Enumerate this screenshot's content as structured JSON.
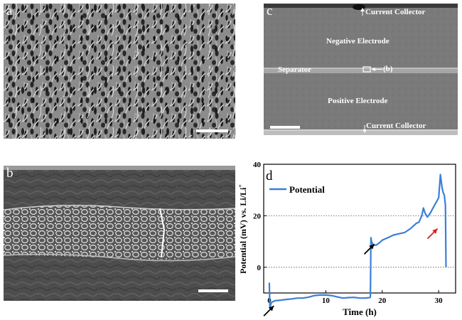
{
  "panels": {
    "a": {
      "label": "a"
    },
    "b": {
      "label": "b"
    },
    "c": {
      "label": "c",
      "top_collector": "Current Collector",
      "negative": "Negative Electrode",
      "separator": "Separator",
      "marker": "(b)",
      "positive": "Positive Electrode",
      "bottom_collector": "Current Collector"
    },
    "d": {
      "label": "d"
    }
  },
  "chart_data": {
    "type": "line",
    "xlabel": "Time (h)",
    "ylabel": "Potential (mV) vs. Li/Li",
    "ylabel_sup": "+",
    "xlim": [
      -1,
      33
    ],
    "ylim": [
      -10,
      40
    ],
    "xticks": [
      0,
      10,
      20,
      30
    ],
    "yticks": [
      0,
      20,
      40
    ],
    "hlines": [
      0,
      20
    ],
    "legend": "top-left",
    "series": [
      {
        "name": "Potential",
        "color": "#3b7fd6",
        "x": [
          0,
          0.1,
          0.2,
          0.3,
          0.5,
          1,
          2,
          3,
          4,
          5,
          6,
          7,
          8,
          9,
          10,
          11,
          12,
          13,
          14,
          15,
          16,
          17,
          17.8,
          17.9,
          18.0,
          18.1,
          18.3,
          18.6,
          19,
          19.5,
          20,
          21,
          22,
          23,
          24,
          25,
          25.5,
          26,
          26.5,
          27,
          27.3,
          27.6,
          28,
          28.5,
          29,
          29.5,
          30,
          30.3,
          30.6,
          30.8,
          31,
          31.1,
          31.2,
          31.3
        ],
        "y": [
          -6,
          -15.5,
          -15,
          -14,
          -13.5,
          -13,
          -12.8,
          -12.5,
          -12.3,
          -12,
          -12,
          -11.6,
          -11,
          -10.8,
          -10.8,
          -11,
          -11.5,
          -12,
          -11.8,
          -11.7,
          -12,
          -12,
          -11.8,
          -11.5,
          11.5,
          10,
          9,
          8.5,
          8.7,
          9.5,
          10.5,
          11.5,
          12.5,
          13,
          13.5,
          15,
          16,
          17,
          17.5,
          20,
          23,
          21,
          19.5,
          21,
          23,
          25,
          27,
          36,
          31,
          29,
          28,
          26,
          24,
          0
        ]
      }
    ],
    "annotations": [
      {
        "type": "arrow",
        "color": "black",
        "x": 0.8,
        "y": -15
      },
      {
        "type": "arrow",
        "color": "black",
        "x": 18.6,
        "y": 9
      },
      {
        "type": "arrow",
        "color": "red",
        "x": 29.8,
        "y": 15
      }
    ]
  }
}
